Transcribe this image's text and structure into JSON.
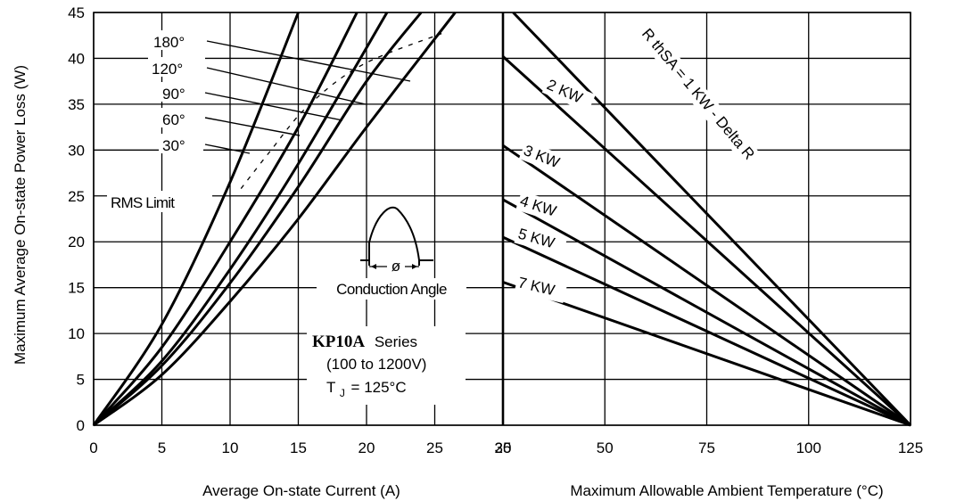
{
  "chart_data": [
    {
      "panel": "left",
      "type": "line",
      "xlabel": "Average On-state Current (A)",
      "ylabel": "Maximum Average On-state Power Loss (W)",
      "xlim": [
        0,
        30
      ],
      "ylim": [
        0,
        45
      ],
      "xticks": [
        "0",
        "5",
        "10",
        "15",
        "20",
        "25",
        "30"
      ],
      "yticks": [
        "0",
        "5",
        "10",
        "15",
        "20",
        "25",
        "30",
        "35",
        "40",
        "45"
      ],
      "grid": true,
      "series": [
        {
          "name": "180°",
          "x": [
            0,
            5,
            10,
            15,
            20,
            26.5
          ],
          "y": [
            0,
            5.5,
            13.5,
            22.5,
            32.5,
            45
          ]
        },
        {
          "name": "120°",
          "x": [
            0,
            5,
            10,
            15,
            20,
            24
          ],
          "y": [
            0,
            6.5,
            15.5,
            26,
            37.5,
            45
          ]
        },
        {
          "name": "90°",
          "x": [
            0,
            5,
            10,
            15,
            21.5
          ],
          "y": [
            0,
            7,
            17,
            28.5,
            45
          ]
        },
        {
          "name": "60°",
          "x": [
            0,
            5,
            10,
            15,
            19.3
          ],
          "y": [
            0,
            8.5,
            20,
            32.5,
            45
          ]
        },
        {
          "name": "30°",
          "x": [
            0,
            5,
            10,
            15
          ],
          "y": [
            0,
            11,
            26.5,
            45
          ]
        }
      ],
      "rms_limit": {
        "label": "RMS Limit",
        "x": [
          10.8,
          12.9,
          15.7,
          19.7,
          25.5
        ],
        "y": [
          25.8,
          29.8,
          34.8,
          39.3,
          42.7
        ]
      },
      "annotations": {
        "conduction_angle": "Conduction Angle",
        "phi_symbol": "ø",
        "series_name": "KP10A",
        "series_word": "Series",
        "voltage_range": "(100 to 1200V)",
        "tj_prefix": "T",
        "tj_sub": "J",
        "tj_value": "= 125°C"
      }
    },
    {
      "panel": "right",
      "type": "line",
      "xlabel": "Maximum Allowable Ambient Temperature (°C)",
      "xlim": [
        30,
        125
      ],
      "xticks": [
        "30",
        "25",
        "50",
        "75",
        "100",
        "125"
      ],
      "ylim": [
        0,
        45
      ],
      "grid": true,
      "series": [
        {
          "name": "R thSA = 1 KW - Delta R",
          "x": [
            27.5,
            125
          ],
          "y": [
            45,
            0
          ]
        },
        {
          "name": "2 KW",
          "x": [
            30,
            125
          ],
          "y": [
            40.2,
            0
          ]
        },
        {
          "name": "3 KW",
          "x": [
            30,
            125
          ],
          "y": [
            30.5,
            0
          ]
        },
        {
          "name": "4 KW",
          "x": [
            30,
            125
          ],
          "y": [
            24.6,
            0
          ]
        },
        {
          "name": "5 KW",
          "x": [
            30,
            125
          ],
          "y": [
            20.5,
            0
          ]
        },
        {
          "name": "7 KW",
          "x": [
            30,
            125
          ],
          "y": [
            15.6,
            0
          ]
        }
      ]
    }
  ]
}
